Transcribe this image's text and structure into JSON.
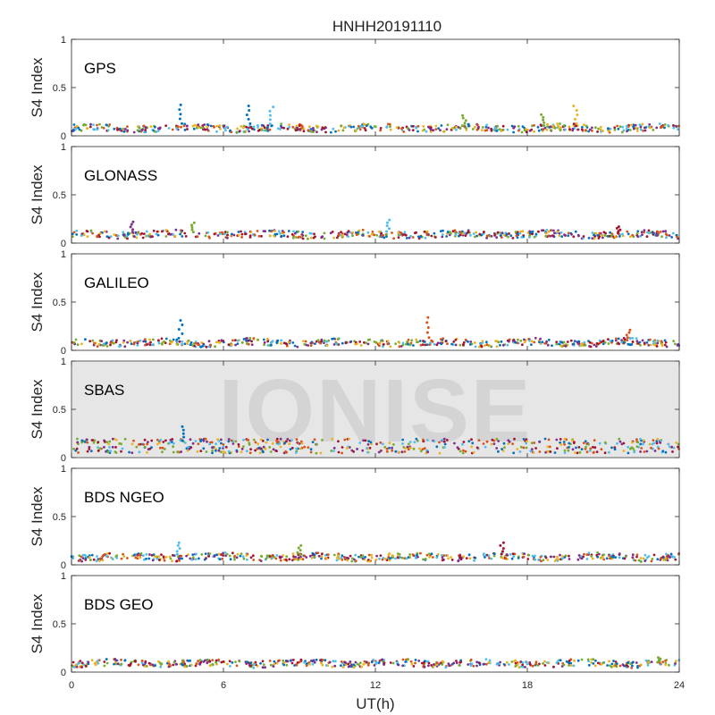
{
  "chart_data": {
    "type": "scatter",
    "title": "HNHH20191110",
    "xlabel": "UT(h)",
    "ylabel": "S4 Index",
    "xlim": [
      0,
      24
    ],
    "ylim": [
      0,
      1
    ],
    "xticks": [
      "0",
      "6",
      "12",
      "18",
      "24"
    ],
    "yticks": [
      "0",
      "0.5",
      "1"
    ],
    "watermark": "IONISE",
    "colors": [
      "#0072BD",
      "#D95319",
      "#EDB120",
      "#7E2F8E",
      "#77AC30",
      "#4DBEEE",
      "#A2142F"
    ],
    "panels": [
      {
        "label": "GPS",
        "baseline": 0.08,
        "spikes": [
          {
            "x": 4.3,
            "y": 0.32,
            "color": "#0072BD"
          },
          {
            "x": 7.0,
            "y": 0.31,
            "color": "#0072BD"
          },
          {
            "x": 7.9,
            "y": 0.3,
            "color": "#4DBEEE"
          },
          {
            "x": 15.5,
            "y": 0.21,
            "color": "#77AC30"
          },
          {
            "x": 18.6,
            "y": 0.22,
            "color": "#77AC30"
          },
          {
            "x": 19.9,
            "y": 0.31,
            "color": "#EDB120"
          }
        ]
      },
      {
        "label": "GLONASS",
        "baseline": 0.09,
        "spikes": [
          {
            "x": 2.4,
            "y": 0.22,
            "color": "#7E2F8E"
          },
          {
            "x": 4.8,
            "y": 0.21,
            "color": "#77AC30"
          },
          {
            "x": 12.5,
            "y": 0.24,
            "color": "#4DBEEE"
          },
          {
            "x": 21.6,
            "y": 0.17,
            "color": "#A2142F"
          }
        ]
      },
      {
        "label": "GALILEO",
        "baseline": 0.08,
        "spikes": [
          {
            "x": 4.3,
            "y": 0.31,
            "color": "#0072BD"
          },
          {
            "x": 14.1,
            "y": 0.34,
            "color": "#D95319"
          },
          {
            "x": 22.0,
            "y": 0.21,
            "color": "#D95319"
          }
        ]
      },
      {
        "label": "SBAS",
        "baseline": 0.14,
        "spikes": [
          {
            "x": 4.4,
            "y": 0.32,
            "color": "#0072BD"
          }
        ]
      },
      {
        "label": "BDS NGEO",
        "baseline": 0.08,
        "spikes": [
          {
            "x": 4.2,
            "y": 0.23,
            "color": "#4DBEEE"
          },
          {
            "x": 9.0,
            "y": 0.2,
            "color": "#77AC30"
          },
          {
            "x": 17.0,
            "y": 0.23,
            "color": "#A2142F"
          }
        ]
      },
      {
        "label": "BDS GEO",
        "baseline": 0.09,
        "spikes": [
          {
            "x": 23.2,
            "y": 0.15,
            "color": "#77AC30"
          }
        ]
      }
    ]
  }
}
